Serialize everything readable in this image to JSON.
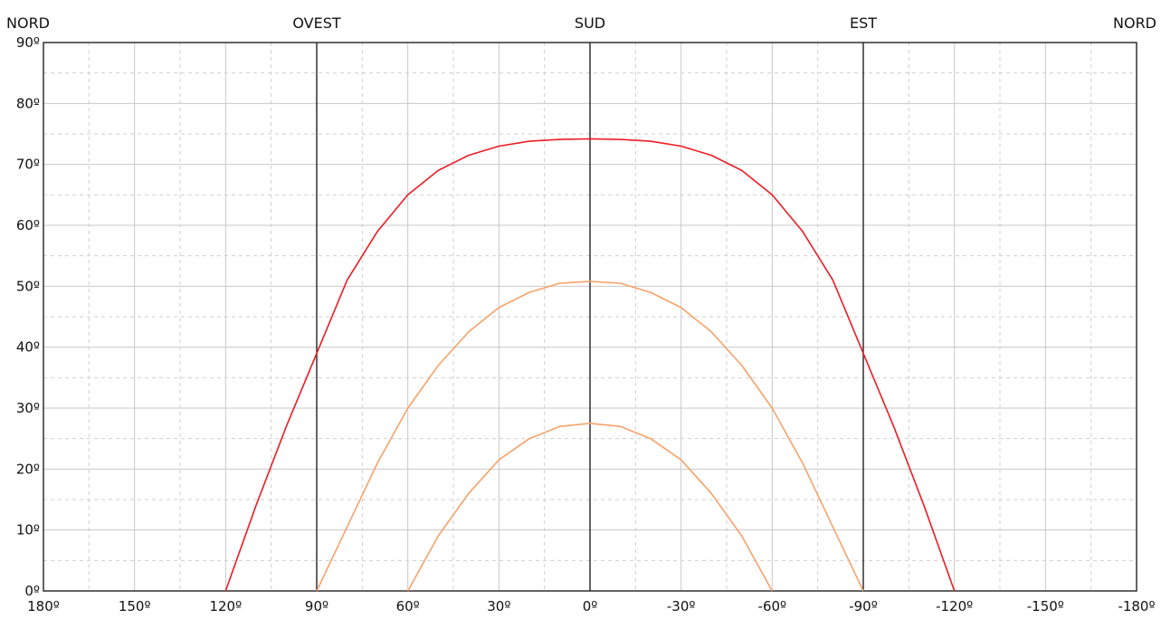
{
  "chart_data": {
    "type": "line",
    "title": "",
    "xlabel": "",
    "ylabel": "",
    "xlim": [
      180,
      -180
    ],
    "ylim": [
      0,
      90
    ],
    "grid": true,
    "legend": "none",
    "x_ticks": [
      "180º",
      "150º",
      "120º",
      "90º",
      "60º",
      "30º",
      "0º",
      "-30º",
      "-60º",
      "-90º",
      "-120º",
      "-150º",
      "-180º"
    ],
    "x_tick_values": [
      180,
      150,
      120,
      90,
      60,
      30,
      0,
      -30,
      -60,
      -90,
      -120,
      -150,
      -180
    ],
    "y_ticks": [
      "0º",
      "10º",
      "20º",
      "30º",
      "40º",
      "50º",
      "60º",
      "70º",
      "80º",
      "90º"
    ],
    "y_tick_values": [
      0,
      10,
      20,
      30,
      40,
      50,
      60,
      70,
      80,
      90
    ],
    "directions": [
      {
        "label": "NORD",
        "x": 180
      },
      {
        "label": "OVEST",
        "x": 90
      },
      {
        "label": "SUD",
        "x": 0
      },
      {
        "label": "EST",
        "x": -90
      },
      {
        "label": "NORD",
        "x": -180
      }
    ],
    "series": [
      {
        "color": "#ee1c24",
        "x": [
          120,
          110,
          100,
          90,
          80,
          70,
          60,
          50,
          40,
          30,
          20,
          10,
          0,
          -10,
          -20,
          -30,
          -40,
          -50,
          -60,
          -70,
          -80,
          -90,
          -100,
          -110,
          -120
        ],
        "y": [
          0,
          14,
          27,
          39,
          51,
          59,
          65,
          69,
          71.5,
          73,
          73.8,
          74.1,
          74.2,
          74.1,
          73.8,
          73,
          71.5,
          69,
          65,
          59,
          51,
          39,
          27,
          14,
          0
        ]
      },
      {
        "color": "#f7a26a",
        "x": [
          90,
          80,
          70,
          60,
          50,
          40,
          30,
          20,
          10,
          0,
          -10,
          -20,
          -30,
          -40,
          -50,
          -60,
          -70,
          -80,
          -90
        ],
        "y": [
          0,
          10.5,
          21,
          30,
          37,
          42.5,
          46.5,
          49,
          50.5,
          50.8,
          50.5,
          49,
          46.5,
          42.5,
          37,
          30,
          21,
          10.5,
          0
        ]
      },
      {
        "color": "#f7a26a",
        "x": [
          60,
          50,
          40,
          30,
          20,
          10,
          0,
          -10,
          -20,
          -30,
          -40,
          -50,
          -60
        ],
        "y": [
          0,
          9,
          16,
          21.5,
          25,
          27,
          27.5,
          27,
          25,
          21.5,
          16,
          9,
          0
        ]
      }
    ]
  }
}
